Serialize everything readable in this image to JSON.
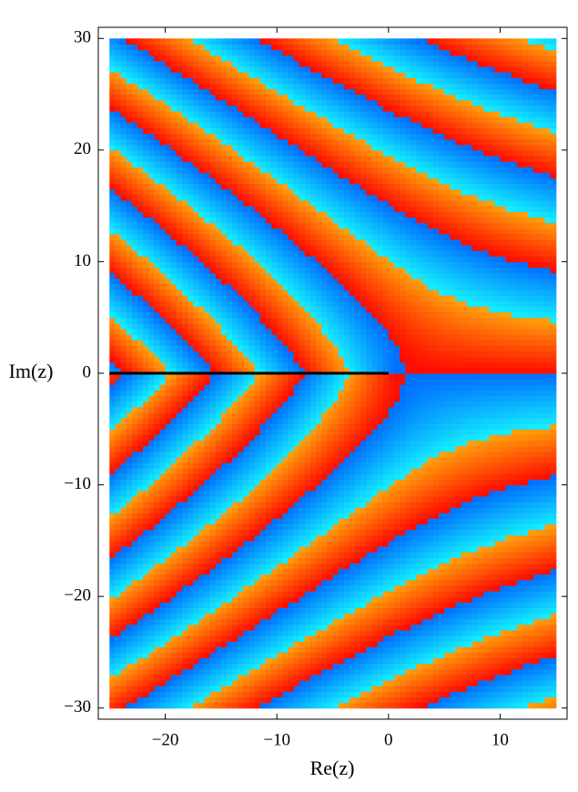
{
  "chart_data": {
    "type": "complex-plot",
    "x_label": "Re(z)",
    "y_label": "Im(z)",
    "xlim": [
      -26,
      16
    ],
    "ylim": [
      -31,
      31
    ],
    "plot_range": {
      "x": [
        -25,
        15
      ],
      "y": [
        -30,
        30
      ]
    },
    "xticks": [
      {
        "value": -20,
        "label": "−20"
      },
      {
        "value": -10,
        "label": "−10"
      },
      0,
      10
    ],
    "yticks": [
      {
        "value": -30,
        "label": "−30"
      },
      {
        "value": -20,
        "label": "−20"
      },
      {
        "value": -10,
        "label": "−10"
      },
      0,
      10,
      20,
      30
    ]
  }
}
